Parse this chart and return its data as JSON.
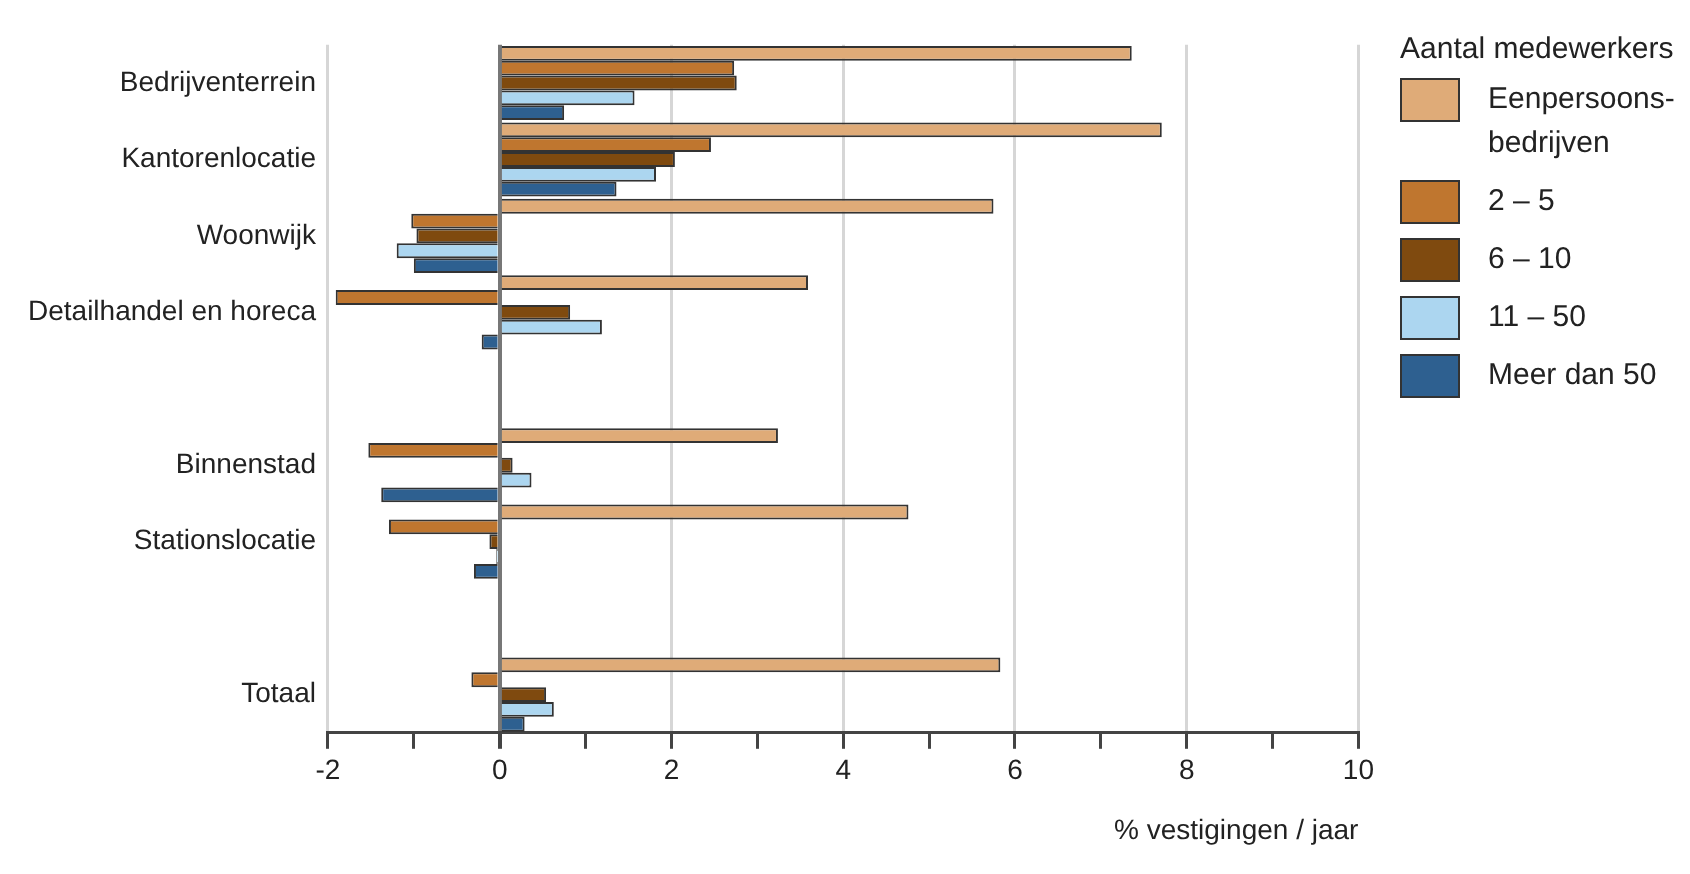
{
  "chart_data": {
    "type": "bar",
    "orientation": "horizontal",
    "xlabel": "% vestigingen / jaar",
    "legend_title": "Aantal medewerkers",
    "legend": "top right",
    "grid": "x",
    "categories": [
      "Bedrijventerrein",
      "Kantorenlocatie",
      "Woonwijk",
      "Detailhandel en horeca",
      null,
      "Binnenstad",
      "Stationslocatie",
      null,
      "Totaal"
    ],
    "xlim": [
      -2,
      10
    ],
    "xticks": [
      -2,
      {
        "value": -1,
        "label": null
      },
      0,
      {
        "value": 1,
        "label": null
      },
      2,
      {
        "value": 3,
        "label": null
      },
      4,
      {
        "value": 5,
        "label": null
      },
      6,
      {
        "value": 7,
        "label": null
      },
      8,
      {
        "value": 9,
        "label": null
      },
      10
    ],
    "series": [
      {
        "name": "Eenpersoons-bedrijven",
        "color": "#dfab78",
        "values": [
          7.36,
          7.71,
          5.75,
          3.59,
          null,
          3.24,
          4.76,
          null,
          5.83
        ]
      },
      {
        "name": "2 – 5",
        "color": "#bf762f",
        "values": [
          2.73,
          2.46,
          -1.03,
          -1.91,
          null,
          -1.53,
          -1.29,
          null,
          -0.33
        ]
      },
      {
        "name": "6 – 10",
        "color": "#7f4a0f",
        "values": [
          2.76,
          2.04,
          -0.97,
          0.82,
          null,
          0.15,
          -0.12,
          null,
          0.54
        ]
      },
      {
        "name": "11 – 50",
        "color": "#acd6f0",
        "values": [
          1.57,
          1.82,
          -1.2,
          1.19,
          null,
          0.37,
          -0.04,
          null,
          0.63
        ]
      },
      {
        "name": "Meer dan 50",
        "color": "#2e6090",
        "values": [
          0.75,
          1.36,
          -1.0,
          -0.21,
          null,
          -1.38,
          -0.3,
          null,
          0.29
        ]
      }
    ]
  }
}
